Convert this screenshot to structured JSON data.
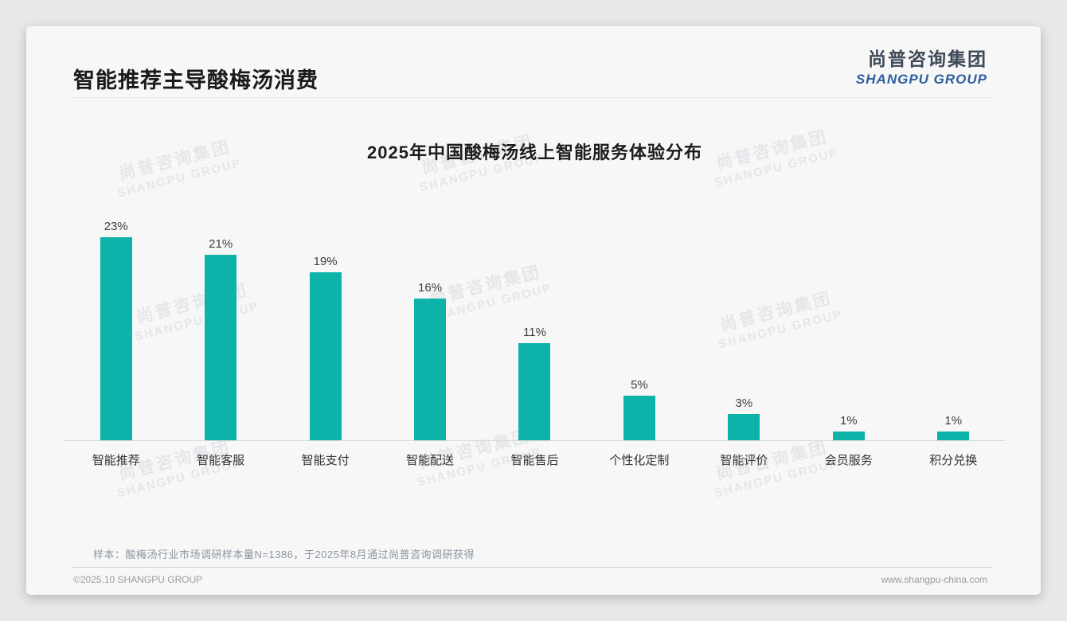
{
  "page": {
    "slide_title": "智能推荐主导酸梅汤消费",
    "logo": {
      "cn": "尚普咨询集团",
      "en": "SHANGPU GROUP"
    },
    "watermark": {
      "cn": "尚普咨询集团",
      "en": "SHANGPU GROUP"
    },
    "source_note": "样本：酸梅汤行业市场调研样本量N=1386，于2025年8月通过尚普咨询调研获得",
    "footer": {
      "left": "©2025.10 SHANGPU GROUP",
      "right": "www.shangpu-china.com"
    }
  },
  "colors": {
    "bar_teal": "#0db2a8",
    "logo_blue": "#2e5e9e",
    "logo_dark": "#3e4a56",
    "card_bg": "#f7f7f8",
    "page_bg": "#e8e8e8"
  },
  "chart_data": {
    "type": "bar",
    "title": "2025年中国酸梅汤线上智能服务体验分布",
    "categories": [
      "智能推荐",
      "智能客服",
      "智能支付",
      "智能配送",
      "智能售后",
      "个性化定制",
      "智能评价",
      "会员服务",
      "积分兑换"
    ],
    "values": [
      23,
      21,
      19,
      16,
      11,
      5,
      3,
      1,
      1
    ],
    "value_labels": [
      "23%",
      "21%",
      "19%",
      "16%",
      "11%",
      "5%",
      "3%",
      "1%",
      "1%"
    ],
    "unit": "%",
    "bar_color": "#0db2a8",
    "xlabel": "",
    "ylabel": "",
    "ylim": [
      0,
      25
    ],
    "grid": false,
    "legend_position": "none"
  }
}
